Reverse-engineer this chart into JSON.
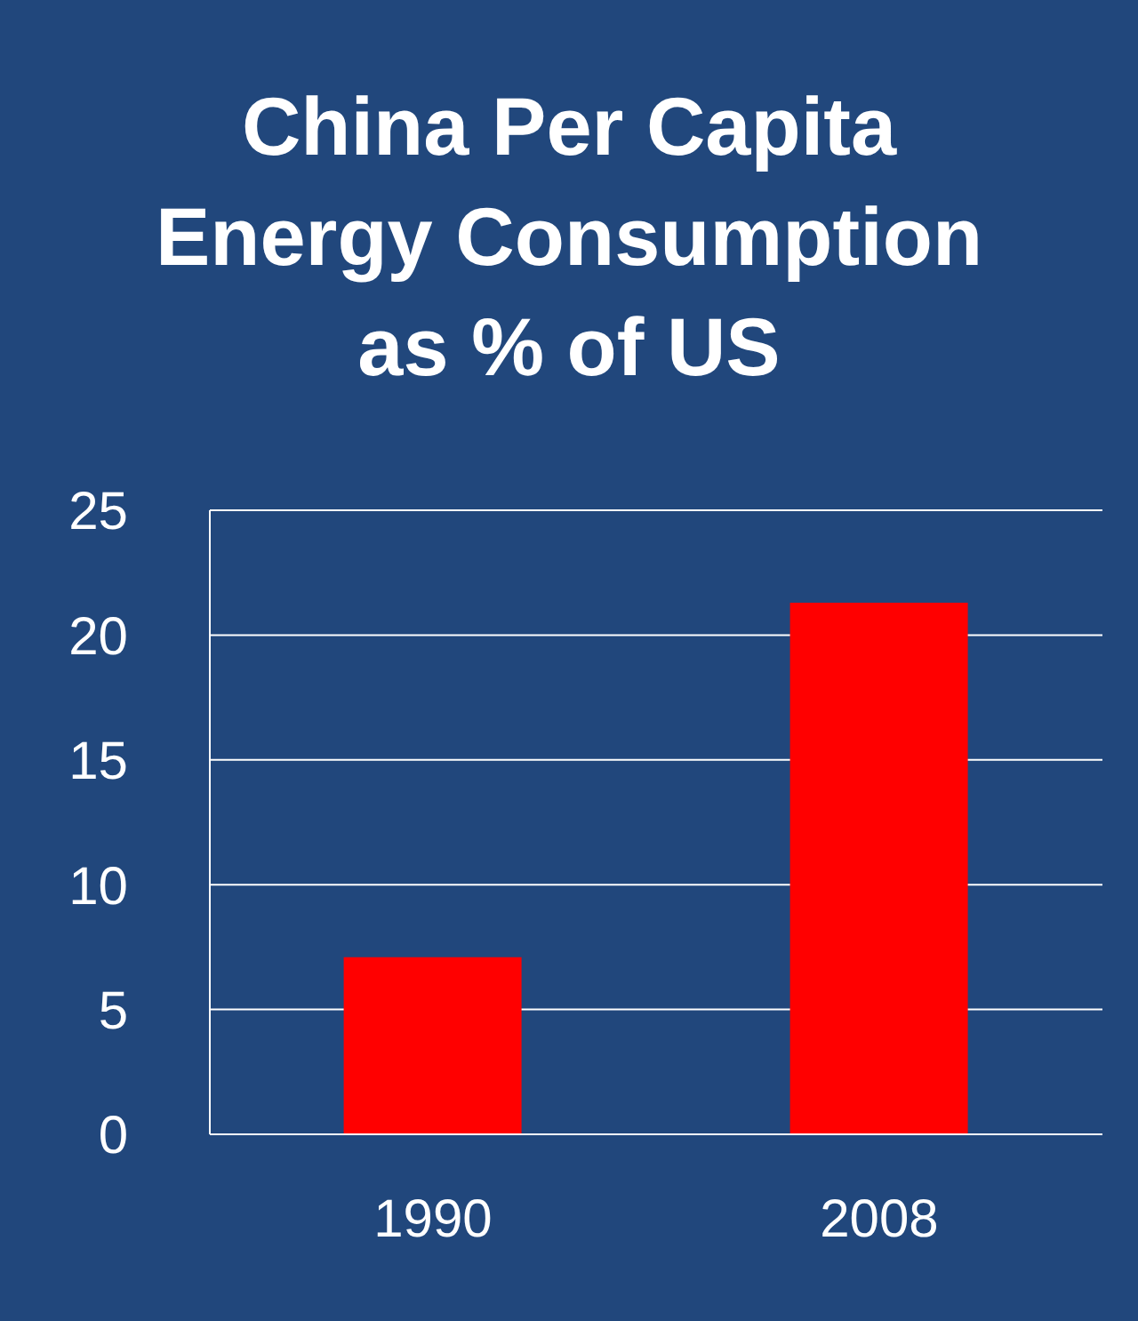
{
  "chart_data": {
    "type": "bar",
    "title": "China Per Capita Energy Consumption as % of US",
    "categories": [
      "1990",
      "2008"
    ],
    "values": [
      7.1,
      21.3
    ],
    "color": "#ff0000",
    "ylim": [
      0,
      25
    ],
    "yticks": [
      0,
      5,
      10,
      15,
      20,
      25
    ],
    "grid": "y"
  }
}
